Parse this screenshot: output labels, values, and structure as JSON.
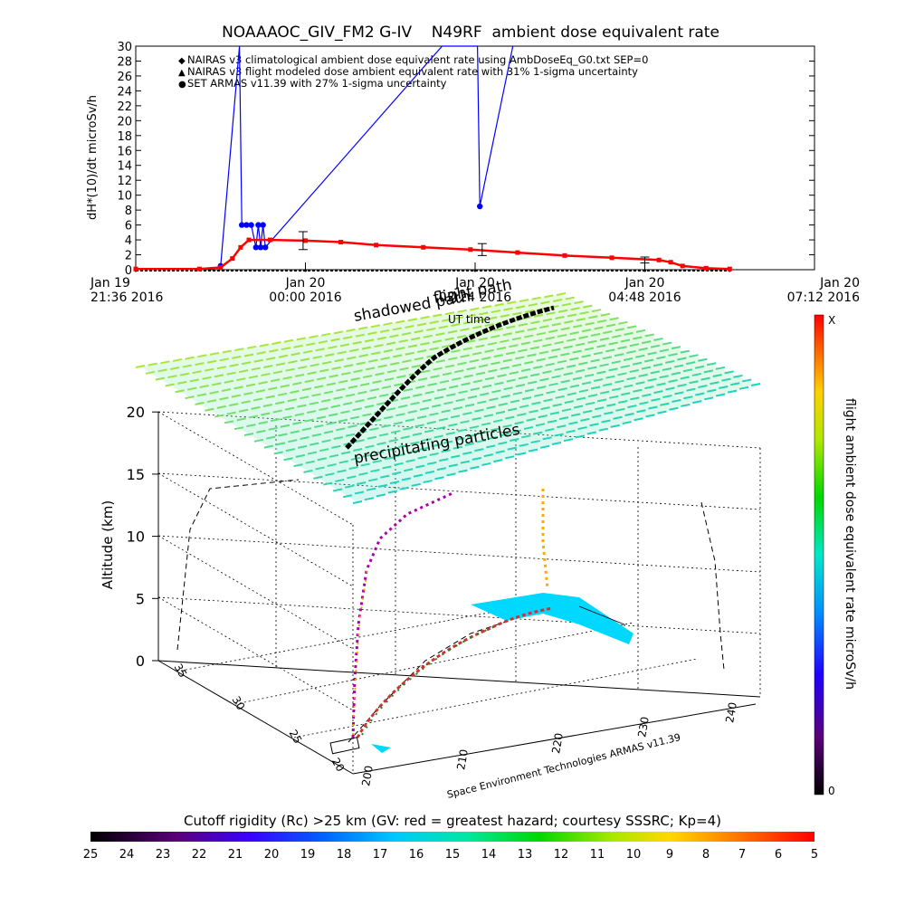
{
  "title": "NOAAAOC_GIV_FM2 G-IV    N49RF  ambient dose equivalent rate",
  "top_plot": {
    "ylabel": "dH*(10)/dt microSv/h",
    "xlabel": "UT time",
    "y_ticks": [
      "0",
      "2",
      "4",
      "6",
      "8",
      "10",
      "12",
      "14",
      "16",
      "18",
      "20",
      "22",
      "24",
      "26",
      "28",
      "30"
    ],
    "x_ticks": [
      {
        "line1": "Jan 19",
        "line2": "21:36 2016"
      },
      {
        "line1": "Jan 20",
        "line2": "00:00 2016"
      },
      {
        "line1": "Jan 20",
        "line2": "02:24 2016"
      },
      {
        "line1": "Jan 20",
        "line2": "04:48 2016"
      },
      {
        "line1": "Jan 20",
        "line2": "07:12 2016"
      }
    ],
    "legend": [
      {
        "symbol": "◆",
        "color": "#ff0000",
        "text": "NAIRAS v3 climatological ambient dose equivalent rate using AmbDoseEq_G0.txt SEP=0"
      },
      {
        "symbol": "▲",
        "color": "#000000",
        "text": "NAIRAS v3 flight modeled dose ambient equivalent rate with 31% 1-sigma uncertainty"
      },
      {
        "symbol": "●",
        "color": "#0000ff",
        "text": "SET ARMAS v11.39 with 27% 1-sigma uncertainty"
      }
    ]
  },
  "three_d": {
    "label_shadowed": "shadowed path",
    "label_flight": "flight path",
    "label_precip": "precipitating particles",
    "zlabel": "Altitude (km)",
    "z_ticks": [
      "0",
      "5",
      "10",
      "15",
      "20"
    ],
    "lat_ticks": [
      "20",
      "25",
      "30",
      "35"
    ],
    "lon_ticks": [
      "200",
      "210",
      "220",
      "230",
      "240"
    ],
    "credit": "Space Environment Technologies ARMAS v11.39"
  },
  "colorbar_right": {
    "label": "flight ambient dose equivalent rate microSv/h",
    "top": "X",
    "bottom": "0"
  },
  "colorbar_bottom": {
    "label": "Cutoff rigidity (Rc) >25 km (GV: red = greatest hazard; courtesy SSSRC; Kp=4)",
    "ticks": [
      "25",
      "24",
      "23",
      "22",
      "21",
      "20",
      "19",
      "18",
      "17",
      "16",
      "15",
      "14",
      "13",
      "12",
      "11",
      "10",
      "9",
      "8",
      "7",
      "6",
      "5"
    ]
  },
  "colors": {
    "nairas_clim": "#ff0000",
    "nairas_flight": "#000000",
    "armas": "#0000ff"
  },
  "chart_data": [
    {
      "type": "line",
      "title": "NOAAAOC_GIV_FM2 G-IV    N49RF  ambient dose equivalent rate",
      "xlabel": "UT time",
      "ylabel": "dH*(10)/dt microSv/h",
      "ylim": [
        0,
        30
      ],
      "xlim": [
        "2016-01-19T21:36",
        "2016-01-20T07:12"
      ],
      "grid": false,
      "legend_position": "top-left",
      "series": [
        {
          "name": "NAIRAS v3 climatological ambient dose equivalent rate using AmbDoseEq_G0.txt SEP=0",
          "x": [
            "2016-01-19T21:36",
            "2016-01-19T22:30",
            "2016-01-19T22:48",
            "2016-01-19T22:58",
            "2016-01-19T23:05",
            "2016-01-19T23:12",
            "2016-01-19T23:30",
            "2016-01-20T00:00",
            "2016-01-20T00:30",
            "2016-01-20T01:00",
            "2016-01-20T01:40",
            "2016-01-20T02:20",
            "2016-01-20T03:00",
            "2016-01-20T03:40",
            "2016-01-20T04:20",
            "2016-01-20T05:00",
            "2016-01-20T05:10",
            "2016-01-20T05:20",
            "2016-01-20T05:40",
            "2016-01-20T06:00"
          ],
          "y": [
            0.1,
            0.1,
            0.3,
            1.5,
            3.0,
            4.0,
            4.0,
            3.9,
            3.7,
            3.3,
            3.0,
            2.7,
            2.3,
            1.9,
            1.6,
            1.3,
            1.0,
            0.5,
            0.2,
            0.1
          ]
        },
        {
          "name": "NAIRAS v3 flight modeled dose ambient equivalent rate with 31% 1-sigma uncertainty",
          "x": [
            "2016-01-19T21:36",
            "2016-01-20T00:00",
            "2016-01-20T02:24",
            "2016-01-20T04:48",
            "2016-01-20T06:00"
          ],
          "y": [
            0,
            0,
            0,
            0,
            0
          ]
        },
        {
          "name": "SET ARMAS v11.39 with 27% 1-sigma uncertainty",
          "x": [
            "2016-01-19T22:48",
            "2016-01-19T23:04",
            "2016-01-19T23:06",
            "2016-01-19T23:10",
            "2016-01-19T23:14",
            "2016-01-19T23:18",
            "2016-01-19T23:20",
            "2016-01-19T23:22",
            "2016-01-19T23:24",
            "2016-01-19T23:26",
            "2016-01-20T01:56",
            "2016-01-20T02:26",
            "2016-01-20T02:28",
            "2016-01-20T02:56"
          ],
          "y": [
            0.5,
            31,
            6.0,
            6.0,
            6.0,
            3.0,
            6.0,
            3.0,
            6.0,
            3.0,
            31,
            31,
            8.5,
            31
          ]
        }
      ],
      "error_bars": [
        {
          "x": "2016-01-19T23:58",
          "y": 3.9,
          "low": 2.7,
          "high": 5.1
        },
        {
          "x": "2016-01-20T02:30",
          "y": 2.7,
          "low": 1.9,
          "high": 3.5
        },
        {
          "x": "2016-01-20T04:48",
          "y": 1.3,
          "low": 0.9,
          "high": 1.7
        }
      ]
    },
    {
      "type": "heatmap",
      "title": "",
      "zlabel": "Altitude (km)",
      "zlim": [
        0,
        20
      ],
      "lat_range": [
        20,
        35
      ],
      "lon_range": [
        200,
        240
      ],
      "colorbar_range_GV": [
        25,
        5
      ]
    }
  ]
}
